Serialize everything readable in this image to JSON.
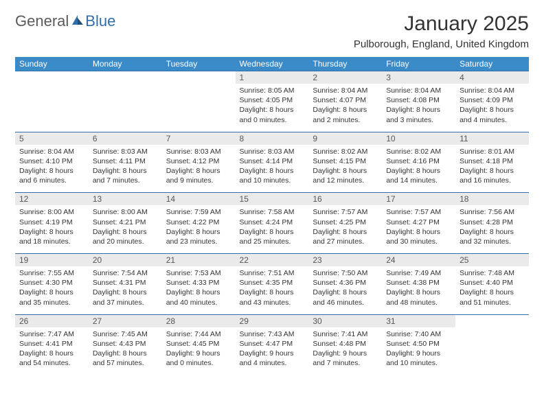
{
  "logo": {
    "text1": "General",
    "text2": "Blue"
  },
  "title": "January 2025",
  "location": "Pulborough, England, United Kingdom",
  "colors": {
    "header_bg": "#3b8bc9",
    "header_text": "#ffffff",
    "daynum_bg": "#eaeaea",
    "border": "#2f6ea8",
    "logo_gray": "#5a5a5a",
    "logo_blue": "#2f6ea8",
    "body_text": "#333333"
  },
  "day_headers": [
    "Sunday",
    "Monday",
    "Tuesday",
    "Wednesday",
    "Thursday",
    "Friday",
    "Saturday"
  ],
  "weeks": [
    {
      "nums": [
        "",
        "",
        "",
        "1",
        "2",
        "3",
        "4"
      ],
      "details": [
        "",
        "",
        "",
        "Sunrise: 8:05 AM\nSunset: 4:05 PM\nDaylight: 8 hours and 0 minutes.",
        "Sunrise: 8:04 AM\nSunset: 4:07 PM\nDaylight: 8 hours and 2 minutes.",
        "Sunrise: 8:04 AM\nSunset: 4:08 PM\nDaylight: 8 hours and 3 minutes.",
        "Sunrise: 8:04 AM\nSunset: 4:09 PM\nDaylight: 8 hours and 4 minutes."
      ]
    },
    {
      "nums": [
        "5",
        "6",
        "7",
        "8",
        "9",
        "10",
        "11"
      ],
      "details": [
        "Sunrise: 8:04 AM\nSunset: 4:10 PM\nDaylight: 8 hours and 6 minutes.",
        "Sunrise: 8:03 AM\nSunset: 4:11 PM\nDaylight: 8 hours and 7 minutes.",
        "Sunrise: 8:03 AM\nSunset: 4:12 PM\nDaylight: 8 hours and 9 minutes.",
        "Sunrise: 8:03 AM\nSunset: 4:14 PM\nDaylight: 8 hours and 10 minutes.",
        "Sunrise: 8:02 AM\nSunset: 4:15 PM\nDaylight: 8 hours and 12 minutes.",
        "Sunrise: 8:02 AM\nSunset: 4:16 PM\nDaylight: 8 hours and 14 minutes.",
        "Sunrise: 8:01 AM\nSunset: 4:18 PM\nDaylight: 8 hours and 16 minutes."
      ]
    },
    {
      "nums": [
        "12",
        "13",
        "14",
        "15",
        "16",
        "17",
        "18"
      ],
      "details": [
        "Sunrise: 8:00 AM\nSunset: 4:19 PM\nDaylight: 8 hours and 18 minutes.",
        "Sunrise: 8:00 AM\nSunset: 4:21 PM\nDaylight: 8 hours and 20 minutes.",
        "Sunrise: 7:59 AM\nSunset: 4:22 PM\nDaylight: 8 hours and 23 minutes.",
        "Sunrise: 7:58 AM\nSunset: 4:24 PM\nDaylight: 8 hours and 25 minutes.",
        "Sunrise: 7:57 AM\nSunset: 4:25 PM\nDaylight: 8 hours and 27 minutes.",
        "Sunrise: 7:57 AM\nSunset: 4:27 PM\nDaylight: 8 hours and 30 minutes.",
        "Sunrise: 7:56 AM\nSunset: 4:28 PM\nDaylight: 8 hours and 32 minutes."
      ]
    },
    {
      "nums": [
        "19",
        "20",
        "21",
        "22",
        "23",
        "24",
        "25"
      ],
      "details": [
        "Sunrise: 7:55 AM\nSunset: 4:30 PM\nDaylight: 8 hours and 35 minutes.",
        "Sunrise: 7:54 AM\nSunset: 4:31 PM\nDaylight: 8 hours and 37 minutes.",
        "Sunrise: 7:53 AM\nSunset: 4:33 PM\nDaylight: 8 hours and 40 minutes.",
        "Sunrise: 7:51 AM\nSunset: 4:35 PM\nDaylight: 8 hours and 43 minutes.",
        "Sunrise: 7:50 AM\nSunset: 4:36 PM\nDaylight: 8 hours and 46 minutes.",
        "Sunrise: 7:49 AM\nSunset: 4:38 PM\nDaylight: 8 hours and 48 minutes.",
        "Sunrise: 7:48 AM\nSunset: 4:40 PM\nDaylight: 8 hours and 51 minutes."
      ]
    },
    {
      "nums": [
        "26",
        "27",
        "28",
        "29",
        "30",
        "31",
        ""
      ],
      "details": [
        "Sunrise: 7:47 AM\nSunset: 4:41 PM\nDaylight: 8 hours and 54 minutes.",
        "Sunrise: 7:45 AM\nSunset: 4:43 PM\nDaylight: 8 hours and 57 minutes.",
        "Sunrise: 7:44 AM\nSunset: 4:45 PM\nDaylight: 9 hours and 0 minutes.",
        "Sunrise: 7:43 AM\nSunset: 4:47 PM\nDaylight: 9 hours and 4 minutes.",
        "Sunrise: 7:41 AM\nSunset: 4:48 PM\nDaylight: 9 hours and 7 minutes.",
        "Sunrise: 7:40 AM\nSunset: 4:50 PM\nDaylight: 9 hours and 10 minutes.",
        ""
      ]
    }
  ]
}
